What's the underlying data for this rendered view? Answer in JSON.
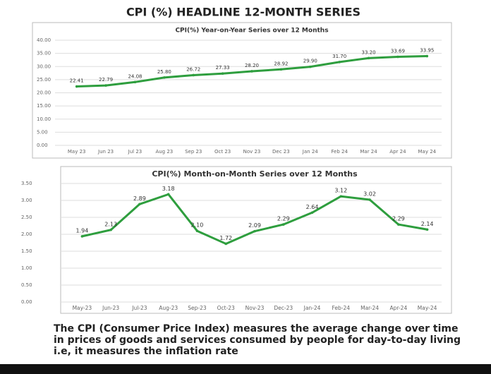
{
  "header": {
    "title": "CPI (%)  HEADLINE 12-MONTH SERIES"
  },
  "chart_data": [
    {
      "type": "line",
      "title": "CPI(%) Year-on-Year Series over 12 Months",
      "categories": [
        "May 23",
        "Jun 23",
        "Jul 23",
        "Aug 23",
        "Sep 23",
        "Oct 23",
        "Nov 23",
        "Dec 23",
        "Jan 24",
        "Feb 24",
        "Mar 24",
        "Apr 24",
        "May 24"
      ],
      "values": [
        22.41,
        22.79,
        24.08,
        25.8,
        26.72,
        27.33,
        28.2,
        28.92,
        29.9,
        31.7,
        33.2,
        33.69,
        33.95
      ],
      "value_labels": [
        "22.41",
        "22.79",
        "24.08",
        "25.80",
        "26.72",
        "27.33",
        "28.20",
        "28.92",
        "29.90",
        "31.70",
        "33.20",
        "33.69",
        "33.95"
      ],
      "color": "#2e9e3e",
      "ylim": [
        0,
        40
      ],
      "yticks": [
        {
          "value": 0,
          "label": "0.00"
        },
        {
          "value": 5,
          "label": "5.00"
        },
        {
          "value": 10,
          "label": "10.00"
        },
        {
          "value": 15,
          "label": "15.00"
        },
        {
          "value": 20,
          "label": "20.00"
        },
        {
          "value": 25,
          "label": "25.00"
        },
        {
          "value": 30,
          "label": "30.00"
        },
        {
          "value": 35,
          "label": "35.00"
        },
        {
          "value": 40,
          "label": "40.00"
        }
      ],
      "grid": true
    },
    {
      "type": "line",
      "title": "CPI(%) Month-on-Month Series over 12 Months",
      "categories": [
        "May-23",
        "Jun-23",
        "Jul-23",
        "Aug-23",
        "Sep-23",
        "Oct-23",
        "Nov-23",
        "Dec-23",
        "Jan-24",
        "Feb-24",
        "Mar-24",
        "Apr-24",
        "May-24"
      ],
      "values": [
        1.94,
        2.13,
        2.89,
        3.18,
        2.1,
        1.72,
        2.09,
        2.29,
        2.64,
        3.12,
        3.02,
        2.29,
        2.14
      ],
      "value_labels": [
        "1.94",
        "2.13",
        "2.89",
        "3.18",
        "2.10",
        "1.72",
        "2.09",
        "2.29",
        "2.64",
        "3.12",
        "3.02",
        "2.29",
        "2.14"
      ],
      "color": "#2e9e3e",
      "ylim": [
        0,
        3.5
      ],
      "yticks": [
        {
          "value": 0,
          "label": "0.00"
        },
        {
          "value": 0.5,
          "label": "0.50"
        },
        {
          "value": 1,
          "label": "1.00"
        },
        {
          "value": 1.5,
          "label": "1.50"
        },
        {
          "value": 2,
          "label": "2.00"
        },
        {
          "value": 2.5,
          "label": "2.50"
        },
        {
          "value": 3,
          "label": "3.00"
        },
        {
          "value": 3.5,
          "label": "3.50"
        }
      ],
      "grid": true
    }
  ],
  "caption": "The CPI (Consumer Price Index) measures the average change over time in prices of goods and services consumed by people for day-to-day living i.e, it measures the inflation rate"
}
